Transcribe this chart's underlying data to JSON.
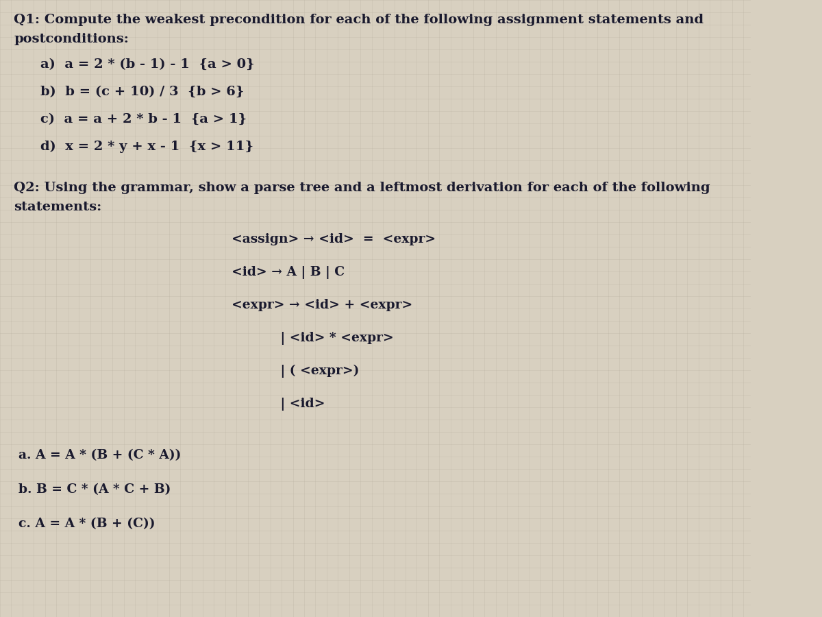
{
  "bg_color": "#d8d0c0",
  "text_color": "#1a1a2e",
  "fig_width": 12.0,
  "fig_height": 9.0,
  "q1_title_line1": "Q1: Compute the weakest precondition for each of the following assignment statements and",
  "q1_title_line2": "postconditions:",
  "q1_items": [
    "a)  a = 2 * (b - 1) - 1  {a > 0}",
    "b)  b = (c + 10) / 3  {b > 6}",
    "c)  a = a + 2 * b - 1  {a > 1}",
    "d)  x = 2 * y + x - 1  {x > 11}"
  ],
  "q2_title_line1": "Q2: Using the grammar, show a parse tree and a leftmost derivation for each of the following",
  "q2_title_line2": "statements:",
  "grammar_lines": [
    "<assign> → <id>  =  <expr>",
    "<id> → A | B | C",
    "<expr> → <id> + <expr>",
    "           | <id> * <expr>",
    "           | ( <expr>)",
    "           | <id>"
  ],
  "q2_items": [
    "a. A = A * (B + (C * A))",
    "b. B = C * (A * C + B)",
    "c. A = A * (B + (C))"
  ],
  "grid_color": "#b8b0a0",
  "grid_alpha": 0.5
}
